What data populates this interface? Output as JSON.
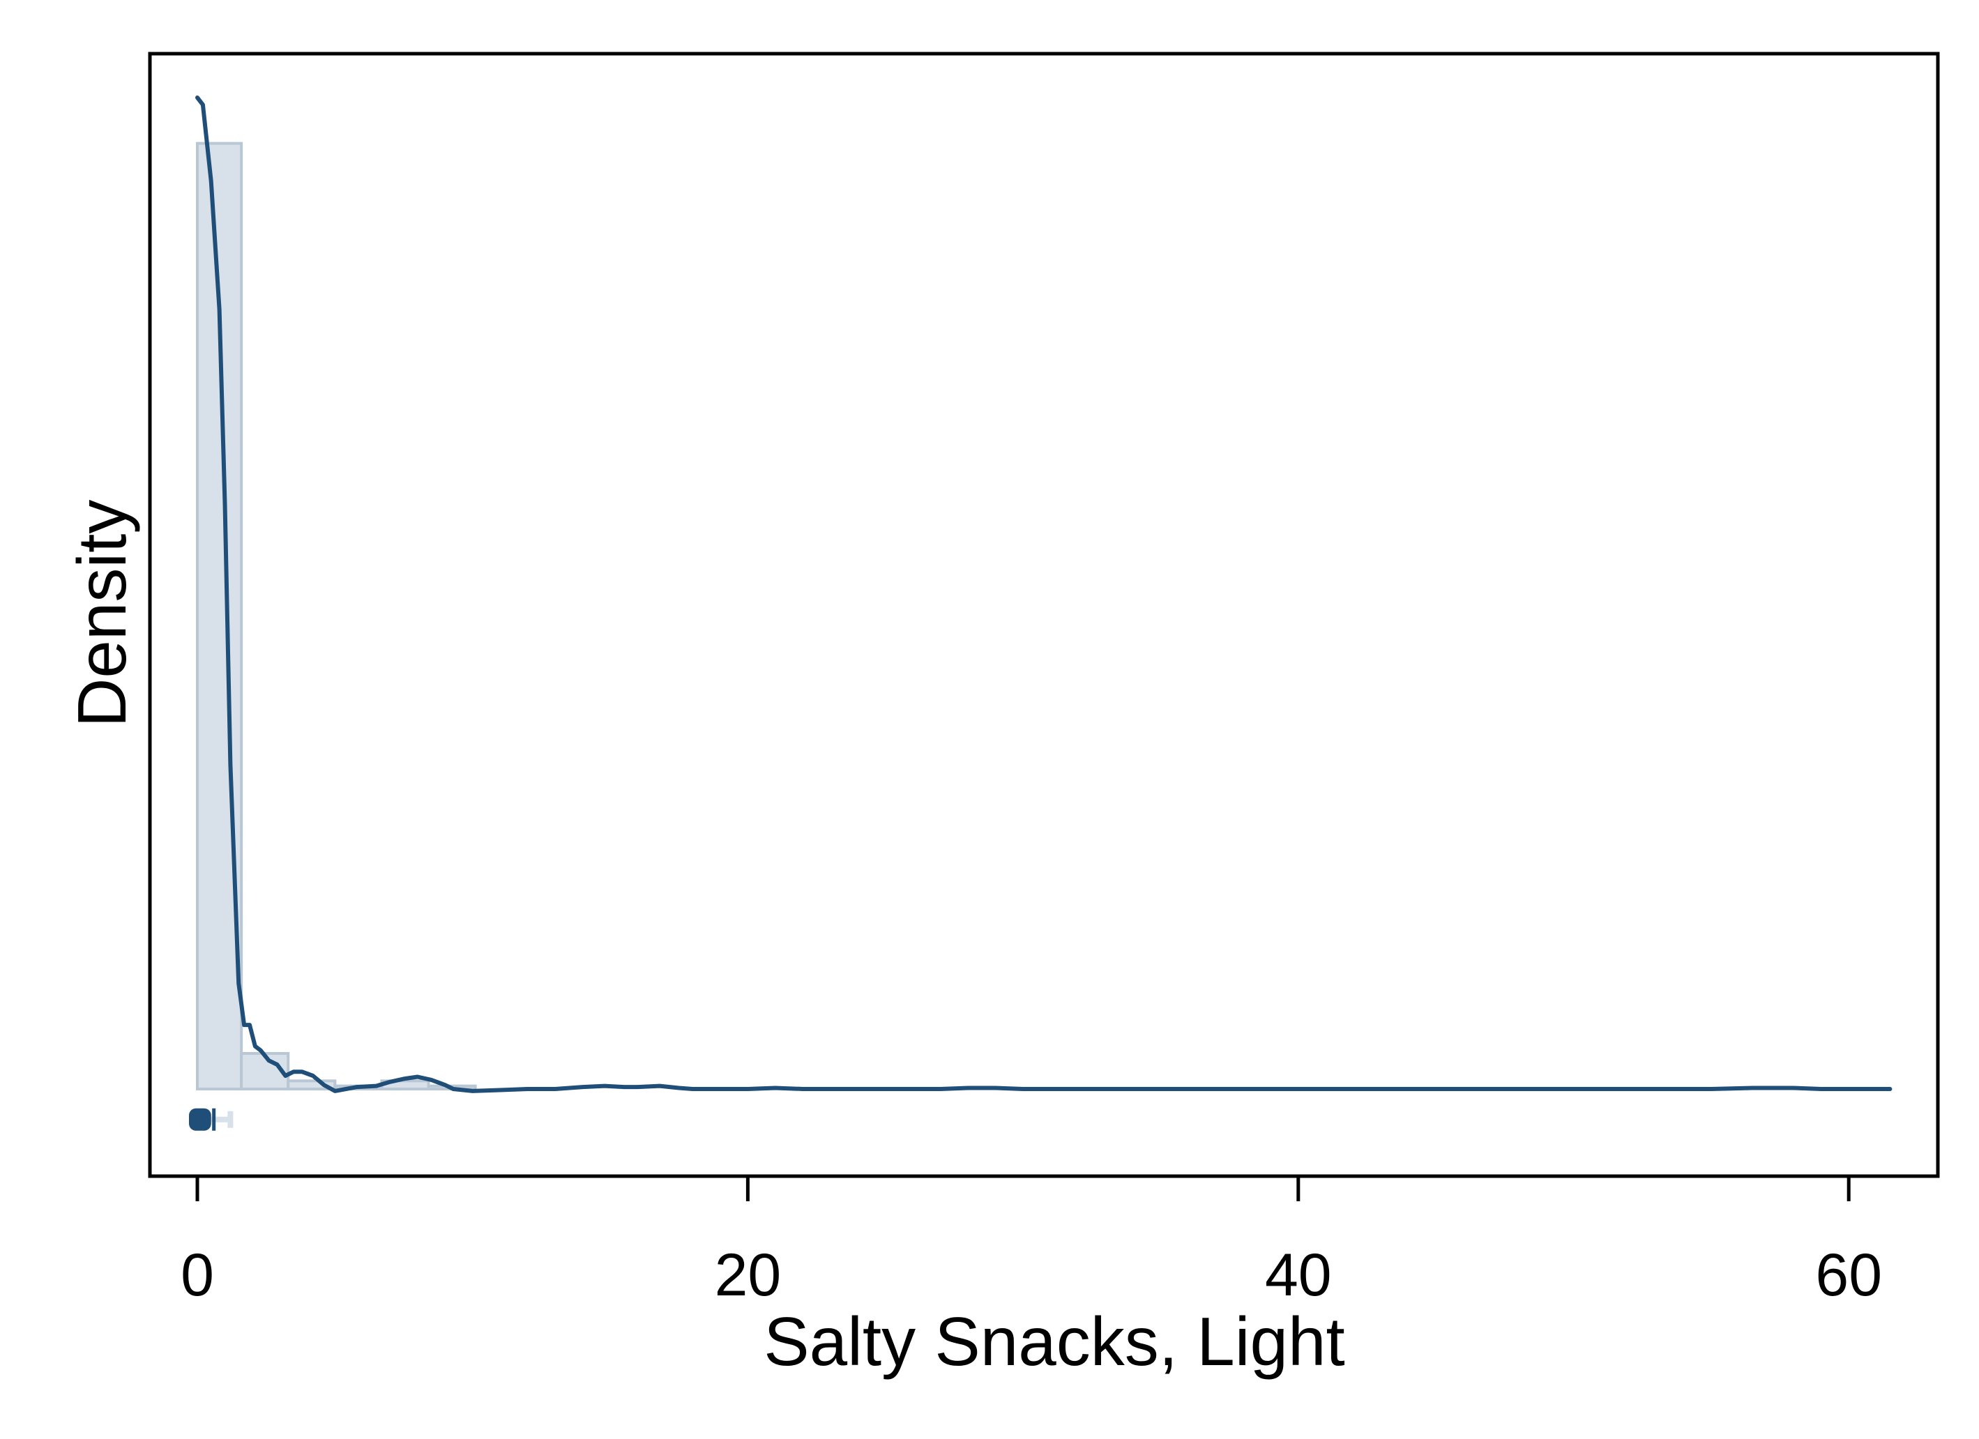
{
  "chart_data": {
    "type": "histogram",
    "title": "",
    "xlabel": "Salty Snacks, Light",
    "ylabel": "Density",
    "xlim": [
      -2,
      63
    ],
    "ylim": [
      -0.085,
      1.0
    ],
    "x_ticks": [
      0,
      20,
      40,
      60
    ],
    "x_tick_labels": [
      "0",
      "20",
      "40",
      "60"
    ],
    "y_ticks": [],
    "grid": false,
    "legend": "none",
    "bins": [
      {
        "x0": 0.0,
        "x1": 1.6,
        "density": 0.93
      },
      {
        "x0": 1.6,
        "x1": 3.3,
        "density": 0.035
      },
      {
        "x0": 3.3,
        "x1": 5.0,
        "density": 0.008
      },
      {
        "x0": 5.0,
        "x1": 6.7,
        "density": 0.003
      },
      {
        "x0": 6.7,
        "x1": 8.4,
        "density": 0.008
      },
      {
        "x0": 8.4,
        "x1": 10.1,
        "density": 0.003
      }
    ],
    "kde": {
      "x": [
        0.0,
        0.2,
        0.5,
        0.8,
        1.0,
        1.2,
        1.5,
        1.7,
        1.9,
        2.1,
        2.3,
        2.6,
        2.9,
        3.2,
        3.5,
        3.8,
        4.2,
        4.6,
        5.0,
        5.4,
        5.8,
        6.5,
        7.0,
        7.5,
        8.0,
        8.5,
        9.0,
        9.3,
        10.0,
        11.0,
        12.0,
        13.0,
        14.0,
        14.8,
        15.5,
        16.0,
        16.8,
        17.5,
        18.0,
        19.0,
        20.0,
        21.0,
        22.0,
        24.0,
        26.0,
        27.0,
        28.0,
        29.0,
        30.0,
        31.0,
        32.0,
        34.0,
        36.0,
        38.0,
        40.0,
        42.0,
        44.0,
        46.0,
        48.0,
        50.0,
        52.0,
        54.0,
        55.0,
        56.5,
        58.0,
        59.0,
        60.0,
        61.0,
        61.5
      ],
      "y": [
        0.975,
        0.968,
        0.893,
        0.767,
        0.576,
        0.319,
        0.104,
        0.063,
        0.063,
        0.042,
        0.038,
        0.028,
        0.024,
        0.013,
        0.017,
        0.017,
        0.013,
        0.004,
        -0.002,
        0.0,
        0.002,
        0.003,
        0.007,
        0.01,
        0.012,
        0.009,
        0.004,
        0.0,
        -0.002,
        -0.001,
        0.0,
        0.0,
        0.002,
        0.003,
        0.002,
        0.002,
        0.003,
        0.001,
        0.0,
        0.0,
        0.0,
        0.001,
        0.0,
        0.0,
        0.0,
        0.0,
        0.001,
        0.001,
        0.0,
        0.0,
        0.0,
        0.0,
        0.0,
        0.0,
        0.0,
        0.0,
        0.0,
        0.0,
        0.0,
        0.0,
        0.0,
        0.0,
        0.0,
        0.001,
        0.001,
        0.0,
        0.0,
        0.0,
        0.0
      ]
    },
    "boxplot": {
      "y": -0.03,
      "q1": 0.0,
      "median": 0.2,
      "q3": 0.5,
      "whisker_low": 0.0,
      "whisker_high": 1.2,
      "mean": 0.6
    },
    "colors": {
      "bar_fill": "#d8e1ea",
      "bar_stroke": "#b9c7d4",
      "kde_line": "#1f4e79",
      "box": "#1f4e79",
      "axis": "#000000"
    }
  }
}
